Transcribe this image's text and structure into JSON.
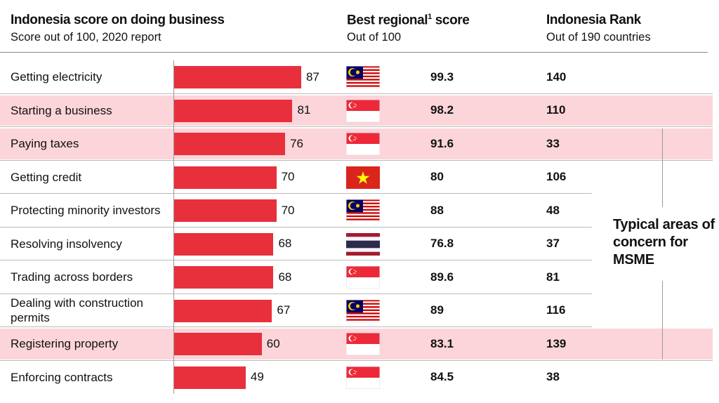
{
  "chart_data": {
    "type": "bar",
    "title": "Indonesia score on doing business",
    "subtitle": "Score out of 100, 2020 report",
    "columns": {
      "best_title": "Best regional",
      "best_sup": "1",
      "best_title_end": " score",
      "best_sub": "Out of 100",
      "rank_title": "Indonesia Rank",
      "rank_sub": "Out of 190 countries"
    },
    "xlim": [
      0,
      100
    ],
    "categories": [
      "Getting electricity",
      "Starting a business",
      "Paying taxes",
      "Getting credit",
      "Protecting minority investors",
      "Resolving insolvency",
      "Trading across borders",
      "Dealing with construction permits",
      "Registering property",
      "Enforcing contracts"
    ],
    "values": [
      87,
      81,
      76,
      70,
      70,
      68,
      68,
      67,
      60,
      49
    ],
    "best_regional_country": [
      "malaysia",
      "singapore",
      "singapore",
      "vietnam",
      "malaysia",
      "thailand",
      "singapore",
      "malaysia",
      "singapore",
      "singapore"
    ],
    "best_regional_score": [
      "99.3",
      "98.2",
      "91.6",
      "80",
      "88",
      "76.8",
      "89.6",
      "89",
      "83.1",
      "84.5"
    ],
    "indonesia_rank": [
      "140",
      "110",
      "33",
      "106",
      "48",
      "37",
      "81",
      "116",
      "139",
      "38"
    ],
    "highlighted": [
      false,
      true,
      true,
      false,
      false,
      false,
      false,
      false,
      true,
      false
    ],
    "annotation": "Typical areas of concern for MSME",
    "bar_color": "#e8303d",
    "highlight_color": "#fbd5d9"
  }
}
